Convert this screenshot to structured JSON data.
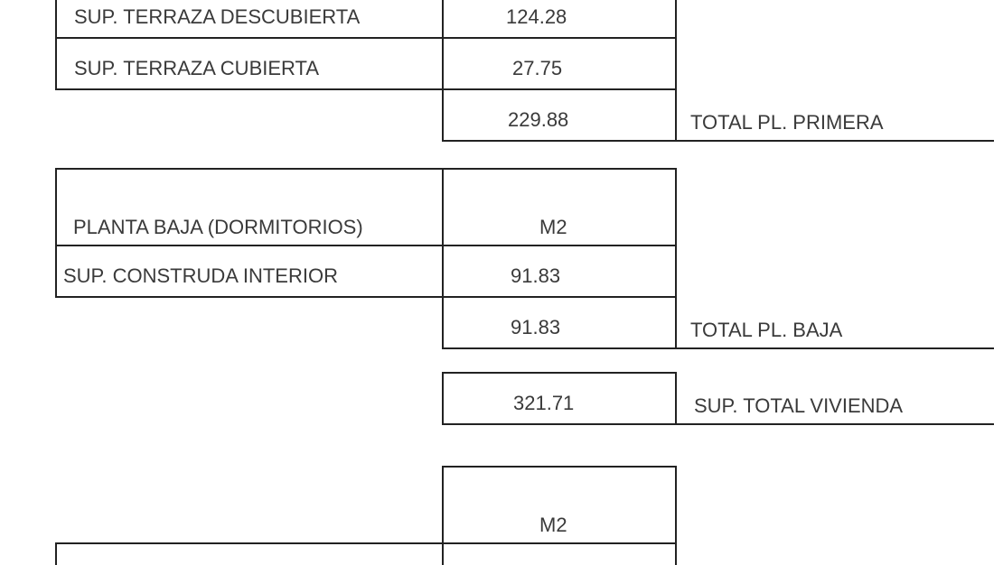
{
  "primera": {
    "rows": [
      {
        "label": "SUP. TERRAZA DESCUBIERTA",
        "value": "124.28"
      },
      {
        "label": "SUP. TERRAZA CUBIERTA",
        "value": "27.75"
      }
    ],
    "total_value": "229.88",
    "total_label": "TOTAL PL. PRIMERA"
  },
  "baja": {
    "header_label": "PLANTA BAJA (DORMITORIOS)",
    "header_unit": "M2",
    "rows": [
      {
        "label": "SUP. CONSTRUDA INTERIOR",
        "value": "91.83"
      }
    ],
    "total_value": "91.83",
    "total_label": "TOTAL PL. BAJA"
  },
  "vivienda": {
    "total_value": "321.71",
    "total_label": "SUP. TOTAL VIVIENDA"
  },
  "next_table": {
    "header_unit": "M2"
  }
}
